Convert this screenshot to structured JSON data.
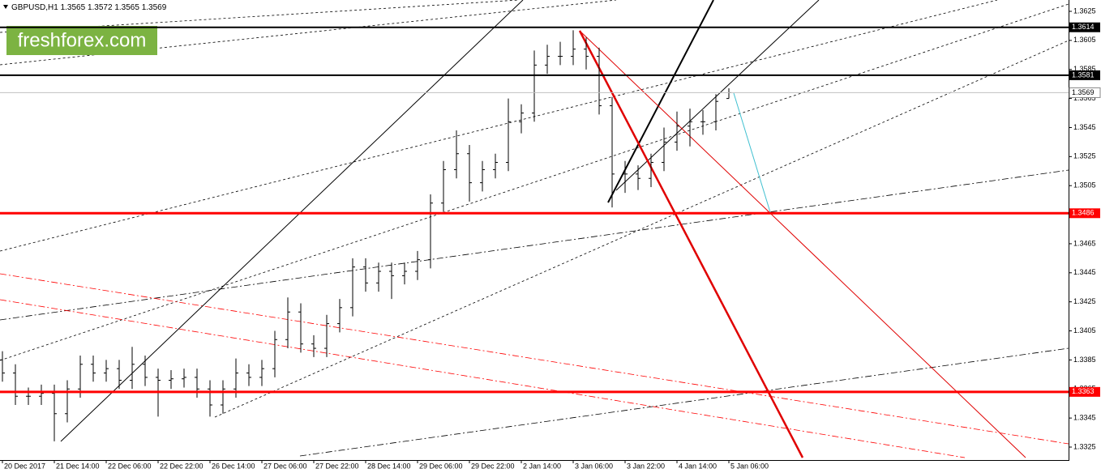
{
  "chart_data": {
    "type": "ohlc",
    "header": {
      "symbol": "GBPUSD,H1",
      "open": 1.3565,
      "high": 1.3572,
      "low": 1.3565,
      "close": 1.3569
    },
    "logo": "freshforex.com",
    "color": "#000000",
    "x": [
      0,
      4,
      8,
      12,
      16,
      20,
      24,
      28,
      32,
      36,
      40,
      44,
      48,
      52,
      56,
      60,
      64,
      68,
      72,
      76,
      80,
      84,
      88,
      92,
      96,
      100,
      104,
      108,
      112,
      116,
      120,
      124,
      128,
      132,
      136,
      140,
      144,
      148,
      152,
      156,
      160,
      164,
      168,
      172,
      176,
      180,
      184,
      188,
      192,
      196,
      200,
      204,
      208,
      212,
      216,
      220,
      224
    ],
    "open": [
      1.3385,
      1.3376,
      1.336,
      1.336,
      1.3362,
      1.3348,
      1.3365,
      1.3382,
      1.3376,
      1.3379,
      1.3371,
      1.3382,
      1.3373,
      1.3371,
      1.3372,
      1.3373,
      1.3365,
      1.3354,
      1.3365,
      1.3376,
      1.3373,
      1.3379,
      1.3399,
      1.3418,
      1.3396,
      1.3393,
      1.341,
      1.3421,
      1.3449,
      1.3438,
      1.3446,
      1.3443,
      1.3446,
      1.3454,
      1.3493,
      1.3516,
      1.3527,
      1.3507,
      1.3516,
      1.3521,
      1.3549,
      1.3555,
      1.3588,
      1.3594,
      1.3594,
      1.3599,
      1.3594,
      1.356,
      1.3513,
      1.3513,
      1.351,
      1.3521,
      1.3535,
      1.3546,
      1.3549,
      1.3549,
      1.3565
    ],
    "high": [
      1.3391,
      1.3382,
      1.3366,
      1.3368,
      1.3368,
      1.3371,
      1.3388,
      1.3388,
      1.3385,
      1.3385,
      1.3394,
      1.3388,
      1.3379,
      1.3378,
      1.3379,
      1.3379,
      1.3371,
      1.3371,
      1.3386,
      1.3382,
      1.3385,
      1.3405,
      1.3428,
      1.3424,
      1.3402,
      1.3416,
      1.3427,
      1.3455,
      1.3455,
      1.3452,
      1.3452,
      1.3452,
      1.346,
      1.3499,
      1.3522,
      1.3543,
      1.3533,
      1.3522,
      1.3527,
      1.3565,
      1.3561,
      1.3598,
      1.3602,
      1.3604,
      1.3612,
      1.3607,
      1.36,
      1.3566,
      1.3522,
      1.3519,
      1.3527,
      1.3545,
      1.3556,
      1.3558,
      1.3557,
      1.3568,
      1.3572
    ],
    "low": [
      1.337,
      1.3354,
      1.3354,
      1.3354,
      1.3329,
      1.3342,
      1.3359,
      1.337,
      1.337,
      1.3365,
      1.3365,
      1.3367,
      1.3346,
      1.3365,
      1.3366,
      1.3359,
      1.3346,
      1.3348,
      1.3359,
      1.3367,
      1.3367,
      1.3373,
      1.3393,
      1.339,
      1.3387,
      1.3387,
      1.3404,
      1.3415,
      1.3432,
      1.3432,
      1.3427,
      1.3437,
      1.344,
      1.3448,
      1.3487,
      1.351,
      1.3494,
      1.3501,
      1.351,
      1.3515,
      1.3541,
      1.3549,
      1.3582,
      1.3588,
      1.3588,
      1.3585,
      1.3554,
      1.349,
      1.35,
      1.3502,
      1.3504,
      1.3515,
      1.3529,
      1.3532,
      1.354,
      1.3543,
      1.3565
    ],
    "close": [
      1.3376,
      1.336,
      1.336,
      1.3362,
      1.3348,
      1.3365,
      1.3382,
      1.3376,
      1.3379,
      1.3371,
      1.3382,
      1.3373,
      1.3371,
      1.3372,
      1.3373,
      1.3365,
      1.3354,
      1.3365,
      1.3376,
      1.3373,
      1.3379,
      1.3399,
      1.3418,
      1.3396,
      1.3393,
      1.341,
      1.3421,
      1.3449,
      1.3438,
      1.3446,
      1.3443,
      1.3446,
      1.3454,
      1.3493,
      1.3516,
      1.3527,
      1.3507,
      1.3516,
      1.3521,
      1.3549,
      1.3555,
      1.3588,
      1.3594,
      1.3594,
      1.3599,
      1.3594,
      1.356,
      1.3513,
      1.3513,
      1.351,
      1.3521,
      1.3535,
      1.3546,
      1.3549,
      1.3549,
      1.3563,
      1.3569
    ],
    "xlim": [
      0,
      329
    ],
    "xticks": [
      {
        "value": 0,
        "label": "20 Dec 2017"
      },
      {
        "value": 16,
        "label": "21 Dec 14:00"
      },
      {
        "value": 32,
        "label": "22 Dec 06:00"
      },
      {
        "value": 48,
        "label": "22 Dec 22:00"
      },
      {
        "value": 64,
        "label": "26 Dec 14:00"
      },
      {
        "value": 80,
        "label": "27 Dec 06:00"
      },
      {
        "value": 96,
        "label": "27 Dec 22:00"
      },
      {
        "value": 112,
        "label": "28 Dec 14:00"
      },
      {
        "value": 128,
        "label": "29 Dec 06:00"
      },
      {
        "value": 144,
        "label": "29 Dec 22:00"
      },
      {
        "value": 160,
        "label": "2 Jan 14:00"
      },
      {
        "value": 176,
        "label": "3 Jan 06:00"
      },
      {
        "value": 192,
        "label": "3 Jan 22:00"
      },
      {
        "value": 208,
        "label": "4 Jan 14:00"
      },
      {
        "value": 224,
        "label": "5 Jan 06:00"
      }
    ],
    "ylim": [
      1.3316,
      1.3633
    ],
    "yticks": [
      1.3625,
      1.3605,
      1.3585,
      1.3565,
      1.3545,
      1.3525,
      1.3505,
      1.3485,
      1.3465,
      1.3445,
      1.3425,
      1.3405,
      1.3385,
      1.3365,
      1.3345,
      1.3325
    ],
    "levels": [
      {
        "value": 1.3614,
        "color": "#000000"
      },
      {
        "value": 1.3581,
        "color": "#000000"
      },
      {
        "value": 1.3569,
        "color": "#c0c0c0"
      },
      {
        "value": 1.3486,
        "color": "#ff0000"
      },
      {
        "value": 1.3363,
        "color": "#ff0000"
      }
    ]
  }
}
